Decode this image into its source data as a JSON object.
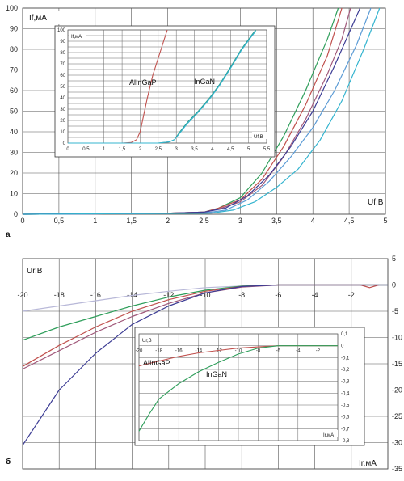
{
  "chart_data": [
    {
      "id": "a",
      "panel_label": "а",
      "type": "line",
      "ylabel": "If,мА",
      "xlabel": "Uf,B",
      "xlim": [
        0,
        5
      ],
      "ylim": [
        0,
        100
      ],
      "x_ticks": [
        "0",
        "0,5",
        "1",
        "1,5",
        "2",
        "2,5",
        "3",
        "3,5",
        "4",
        "4,5",
        "5"
      ],
      "y_ticks": [
        "0",
        "10",
        "20",
        "30",
        "40",
        "50",
        "60",
        "70",
        "80",
        "90",
        "100"
      ],
      "grid": true,
      "series": [
        {
          "color": "#2e9e5a",
          "points": [
            [
              0,
              0
            ],
            [
              1,
              0.2
            ],
            [
              2,
              0.5
            ],
            [
              2.5,
              1
            ],
            [
              2.7,
              3
            ],
            [
              3,
              8
            ],
            [
              3.3,
              20
            ],
            [
              3.6,
              38
            ],
            [
              3.9,
              60
            ],
            [
              4.2,
              85
            ],
            [
              4.35,
              100
            ]
          ]
        },
        {
          "color": "#c0504d",
          "points": [
            [
              0,
              0
            ],
            [
              1,
              0.2
            ],
            [
              2,
              0.5
            ],
            [
              2.5,
              1
            ],
            [
              2.7,
              3
            ],
            [
              3,
              7
            ],
            [
              3.3,
              17
            ],
            [
              3.6,
              33
            ],
            [
              3.9,
              53
            ],
            [
              4.2,
              77
            ],
            [
              4.4,
              100
            ]
          ]
        },
        {
          "color": "#a0587a",
          "points": [
            [
              0,
              0
            ],
            [
              1,
              0.2
            ],
            [
              2,
              0.5
            ],
            [
              2.5,
              1
            ],
            [
              2.7,
              2.5
            ],
            [
              3,
              6
            ],
            [
              3.3,
              14
            ],
            [
              3.6,
              28
            ],
            [
              3.9,
              46
            ],
            [
              4.2,
              68
            ],
            [
              4.4,
              85
            ],
            [
              4.52,
              100
            ]
          ]
        },
        {
          "color": "#5b9bd5",
          "points": [
            [
              0,
              0
            ],
            [
              1,
              0.2
            ],
            [
              2,
              0.4
            ],
            [
              2.6,
              1
            ],
            [
              2.8,
              2
            ],
            [
              3.1,
              7
            ],
            [
              3.4,
              16
            ],
            [
              3.7,
              28
            ],
            [
              4,
              42
            ],
            [
              4.3,
              60
            ],
            [
              4.6,
              82
            ],
            [
              4.8,
              100
            ]
          ]
        },
        {
          "color": "#3c3c94",
          "points": [
            [
              0,
              0
            ],
            [
              1,
              0.2
            ],
            [
              2,
              0.5
            ],
            [
              2.5,
              1
            ],
            [
              2.8,
              3
            ],
            [
              3.1,
              9
            ],
            [
              3.4,
              19
            ],
            [
              3.7,
              33
            ],
            [
              4,
              50
            ],
            [
              4.3,
              72
            ],
            [
              4.55,
              92
            ],
            [
              4.65,
              100
            ]
          ]
        },
        {
          "color": "#34b4cf",
          "points": [
            [
              0,
              0
            ],
            [
              2.6,
              0.5
            ],
            [
              2.9,
              2
            ],
            [
              3.2,
              6
            ],
            [
              3.5,
              13
            ],
            [
              3.8,
              22
            ],
            [
              4.1,
              36
            ],
            [
              4.4,
              55
            ],
            [
              4.7,
              80
            ],
            [
              4.92,
              100
            ]
          ]
        }
      ],
      "inset": {
        "ylabel": "If,мА",
        "xlabel": "Uf,B",
        "xlim": [
          0,
          5.5
        ],
        "ylim": [
          0,
          100
        ],
        "x_ticks": [
          "0",
          "0,5",
          "1",
          "1,5",
          "2",
          "2,5",
          "3",
          "3,5",
          "4",
          "4,5",
          "5",
          "5,5"
        ],
        "y_ticks": [
          "0",
          "10",
          "20",
          "30",
          "40",
          "50",
          "60",
          "70",
          "80",
          "90",
          "100"
        ],
        "annotations": [
          "AlInGaP",
          "InGaN"
        ],
        "series": [
          {
            "color": "#c0504d",
            "points": [
              [
                0,
                0
              ],
              [
                1.5,
                0
              ],
              [
                1.75,
                0.5
              ],
              [
                1.9,
                3
              ],
              [
                2,
                10
              ],
              [
                2.1,
                25
              ],
              [
                2.2,
                40
              ],
              [
                2.35,
                60
              ],
              [
                2.5,
                75
              ],
              [
                2.65,
                90
              ],
              [
                2.75,
                100
              ]
            ]
          },
          {
            "color": "#2a9d8f",
            "points": [
              [
                0,
                0
              ],
              [
                2.5,
                0
              ],
              [
                2.8,
                1
              ],
              [
                2.95,
                3
              ],
              [
                3.1,
                10
              ],
              [
                3.3,
                18
              ],
              [
                3.6,
                28
              ],
              [
                3.9,
                39
              ],
              [
                4.2,
                52
              ],
              [
                4.5,
                67
              ],
              [
                4.8,
                83
              ],
              [
                5.1,
                96
              ],
              [
                5.2,
                100
              ]
            ]
          },
          {
            "color": "#34b4cf",
            "points": [
              [
                0,
                0
              ],
              [
                2.5,
                0
              ],
              [
                2.8,
                1
              ],
              [
                2.95,
                3
              ],
              [
                3.1,
                9
              ],
              [
                3.3,
                17
              ],
              [
                3.6,
                27
              ],
              [
                3.9,
                38
              ],
              [
                4.2,
                51
              ],
              [
                4.5,
                66
              ],
              [
                4.8,
                82
              ],
              [
                5.1,
                95
              ],
              [
                5.2,
                99
              ]
            ]
          }
        ]
      }
    },
    {
      "id": "b",
      "panel_label": "б",
      "type": "line",
      "ylabel": "Ur,B",
      "xlabel": "Ir,мА",
      "xlim": [
        -20,
        0
      ],
      "ylim": [
        -35,
        5
      ],
      "x_ticks": [
        "-20",
        "-18",
        "-16",
        "-14",
        "-12",
        "-10",
        "-8",
        "-6",
        "-4",
        "-2"
      ],
      "y_ticks": [
        "5",
        "0",
        "-5",
        "-10",
        "-15",
        "-20",
        "-25",
        "-30",
        "-35"
      ],
      "grid": true,
      "series": [
        {
          "color": "#b8b8d8",
          "points": [
            [
              -20,
              -5
            ],
            [
              -18,
              -4
            ],
            [
              -16,
              -3
            ],
            [
              -14,
              -2
            ],
            [
              -12,
              -1.2
            ],
            [
              -10,
              -0.5
            ],
            [
              -8,
              -0.2
            ],
            [
              -6,
              0
            ],
            [
              0,
              0
            ]
          ]
        },
        {
          "color": "#2e9e5a",
          "points": [
            [
              -20,
              -10.5
            ],
            [
              -18,
              -8
            ],
            [
              -16,
              -6
            ],
            [
              -14,
              -4
            ],
            [
              -12,
              -2.3
            ],
            [
              -10,
              -1
            ],
            [
              -8,
              -0.2
            ],
            [
              -6,
              0
            ],
            [
              0,
              0
            ]
          ]
        },
        {
          "color": "#c0504d",
          "points": [
            [
              -20,
              -15.5
            ],
            [
              -18,
              -11.5
            ],
            [
              -16,
              -8
            ],
            [
              -14,
              -5
            ],
            [
              -12,
              -2.8
            ],
            [
              -10,
              -1.2
            ],
            [
              -8,
              -0.3
            ],
            [
              -6,
              0
            ],
            [
              -1.5,
              0
            ],
            [
              -1,
              -0.5
            ],
            [
              -0.5,
              0
            ]
          ]
        },
        {
          "color": "#a0587a",
          "points": [
            [
              -20,
              -16
            ],
            [
              -18,
              -12.5
            ],
            [
              -16,
              -9
            ],
            [
              -14,
              -6
            ],
            [
              -12,
              -3.5
            ],
            [
              -10,
              -1.5
            ],
            [
              -8,
              -0.4
            ],
            [
              -6,
              0
            ],
            [
              0,
              0
            ]
          ]
        },
        {
          "color": "#3c3c94",
          "points": [
            [
              -20,
              -30.5
            ],
            [
              -18,
              -20
            ],
            [
              -16,
              -13
            ],
            [
              -14,
              -7.5
            ],
            [
              -12,
              -4
            ],
            [
              -10,
              -1.5
            ],
            [
              -8,
              -0.3
            ],
            [
              -6,
              0
            ],
            [
              0,
              0
            ]
          ]
        }
      ],
      "inset": {
        "ylabel": "Ur,B",
        "xlabel": "Ir,мА",
        "xlim": [
          -20,
          0
        ],
        "ylim": [
          -0.8,
          0.1
        ],
        "x_ticks": [
          "-20",
          "-18",
          "-16",
          "-14",
          "-12",
          "-10",
          "-8",
          "-6",
          "-4",
          "-2"
        ],
        "y_ticks": [
          "0,1",
          "0",
          "-0,1",
          "-0,2",
          "-0,3",
          "-0,4",
          "-0,5",
          "-0,6",
          "-0,7",
          "-0,8"
        ],
        "annotations": [
          "AlInGaP",
          "InGaN"
        ],
        "series": [
          {
            "color": "#c0504d",
            "points": [
              [
                -20,
                -0.17
              ],
              [
                -18,
                -0.13
              ],
              [
                -16,
                -0.09
              ],
              [
                -14,
                -0.06
              ],
              [
                -12,
                -0.04
              ],
              [
                -10,
                -0.02
              ],
              [
                -8,
                -0.01
              ],
              [
                -6,
                0
              ],
              [
                0,
                0
              ]
            ]
          },
          {
            "color": "#2e9e5a",
            "points": [
              [
                -20,
                -0.72
              ],
              [
                -19,
                -0.58
              ],
              [
                -18,
                -0.45
              ],
              [
                -16,
                -0.32
              ],
              [
                -14,
                -0.22
              ],
              [
                -12,
                -0.14
              ],
              [
                -10,
                -0.07
              ],
              [
                -8,
                -0.02
              ],
              [
                -6,
                0
              ],
              [
                0,
                0
              ]
            ]
          }
        ]
      }
    }
  ]
}
